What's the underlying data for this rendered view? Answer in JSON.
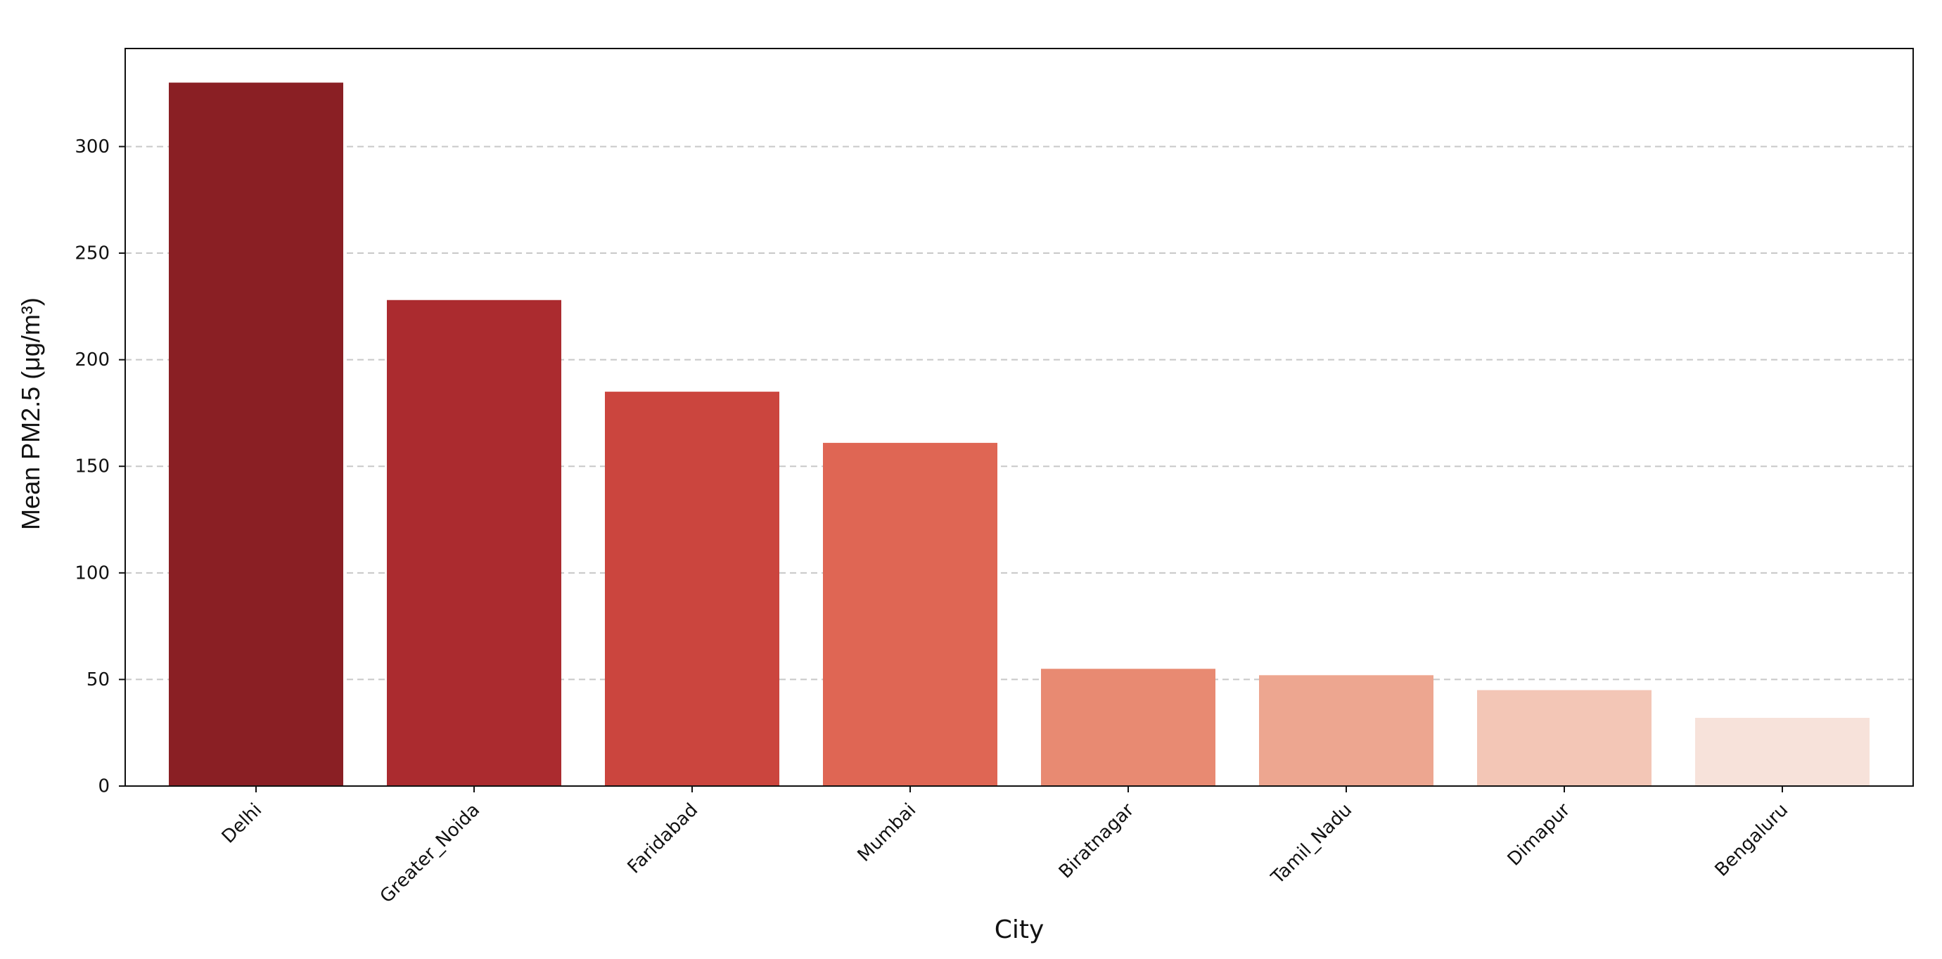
{
  "chart_data": {
    "type": "bar",
    "title": "",
    "xlabel": "City",
    "ylabel": "Mean PM2.5 (μg/m³)",
    "categories": [
      "Delhi",
      "Greater_Noida",
      "Faridabad",
      "Mumbai",
      "Biratnagar",
      "Tamil_Nadu",
      "Dimapur",
      "Bengaluru"
    ],
    "values": [
      330,
      228,
      185,
      161,
      55,
      52,
      45,
      32
    ],
    "colors": [
      "#8a1f24",
      "#ab2b2f",
      "#cb453e",
      "#df6654",
      "#e88a72",
      "#eda690",
      "#f3c6b6",
      "#f7e2da"
    ],
    "ylim": [
      0,
      346
    ],
    "yticks": [
      0,
      50,
      100,
      150,
      200,
      250,
      300
    ],
    "grid": "horizontal dashed",
    "x_tick_rotation": -45
  }
}
